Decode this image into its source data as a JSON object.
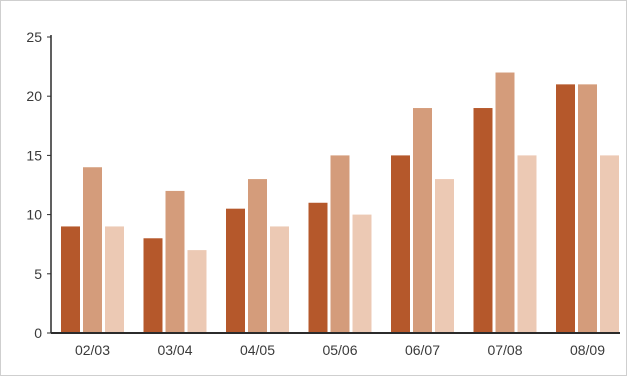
{
  "colors": {
    "series": [
      "#b5582b",
      "#d49c7b",
      "#ecc9b4"
    ],
    "axis": "#2b2b2b"
  },
  "chart_data": {
    "type": "bar",
    "title": "",
    "xlabel": "",
    "ylabel": "",
    "ylim": [
      0,
      25
    ],
    "yticks": [
      0,
      5,
      10,
      15,
      20,
      25
    ],
    "grid": false,
    "legend": "none",
    "categories": [
      "02/03",
      "03/04",
      "04/05",
      "05/06",
      "06/07",
      "07/08",
      "08/09"
    ],
    "series": [
      {
        "values": [
          9,
          8,
          10.5,
          11,
          15,
          19,
          21
        ]
      },
      {
        "values": [
          14,
          12,
          13,
          15,
          19,
          22,
          21
        ]
      },
      {
        "values": [
          9,
          7,
          9,
          10,
          13,
          15,
          15
        ]
      }
    ]
  }
}
